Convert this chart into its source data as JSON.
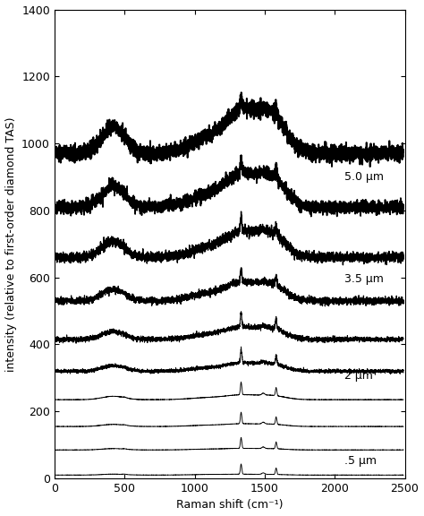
{
  "xlabel": "Raman shift (cm⁻¹)",
  "ylabel": "intensity (relative to first-order diamond TAS)",
  "xlim": [
    0,
    2500
  ],
  "ylim": [
    0,
    1400
  ],
  "yticks": [
    0,
    200,
    400,
    600,
    800,
    1000,
    1200,
    1400
  ],
  "xticks": [
    0,
    500,
    1000,
    1500,
    2000,
    2500
  ],
  "label_5um": "5.0 μm",
  "label_35um": "3.5 μm",
  "label_2um": "2 μm",
  "label_05um": ".5 μm",
  "background_color": "#ffffff",
  "line_color": "#000000",
  "fontsize_axis_label": 9,
  "fontsize_tick": 9,
  "fontsize_annotation": 9
}
